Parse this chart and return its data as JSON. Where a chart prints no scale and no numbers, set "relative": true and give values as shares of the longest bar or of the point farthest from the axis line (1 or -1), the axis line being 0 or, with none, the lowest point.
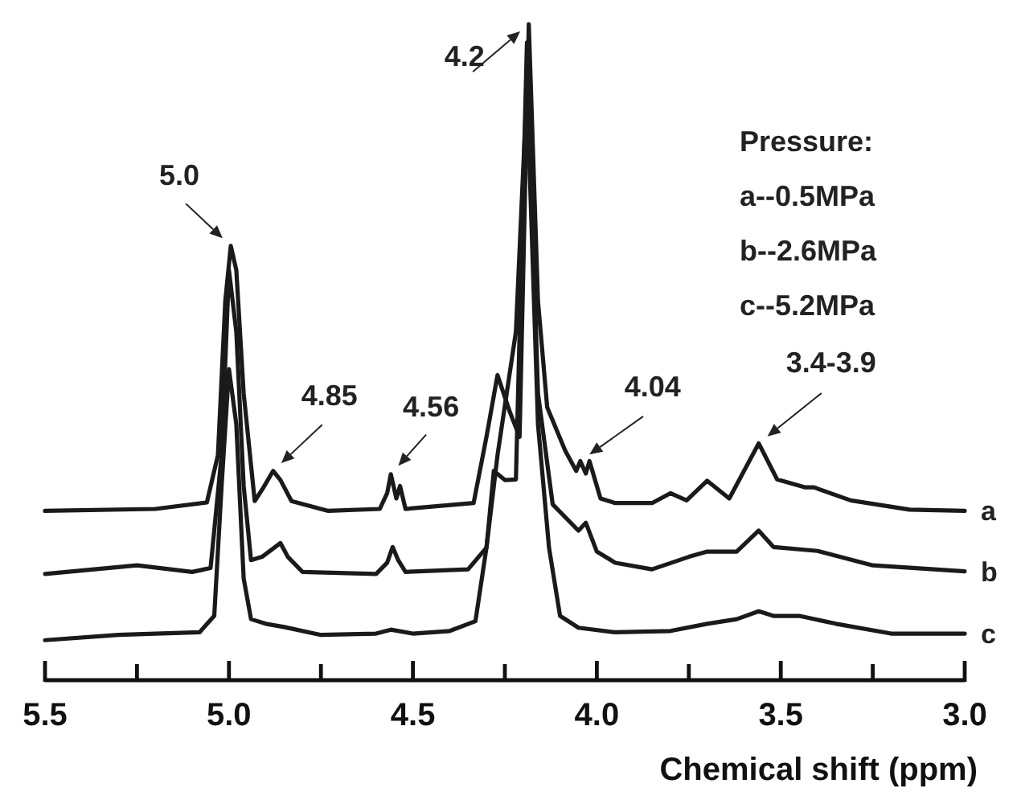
{
  "chart_data": {
    "type": "line",
    "relative": true,
    "xlabel": "Chemical shift (ppm)",
    "xlim": [
      5.5,
      3.0
    ],
    "xticks": [
      5.5,
      {
        "value": 5.25,
        "label": null
      },
      {
        "value": 5.0,
        "label": "5.0"
      },
      {
        "value": 4.75,
        "label": null
      },
      4.5,
      {
        "value": 4.25,
        "label": null
      },
      {
        "value": 4.0,
        "label": "4.0"
      },
      {
        "value": 3.75,
        "label": null
      },
      3.5,
      {
        "value": 3.25,
        "label": null
      },
      {
        "value": 3.0,
        "label": "3.0"
      }
    ],
    "tick_labels": "x",
    "grid": false,
    "legend": false,
    "marker": "none",
    "line_style": "solid",
    "series": [
      {
        "name": "a",
        "color": "#1a1a1a",
        "x": [
          5.5,
          5.2,
          5.06,
          5.03,
          5.01,
          4.995,
          4.98,
          4.96,
          4.93,
          4.906,
          4.88,
          4.86,
          4.83,
          4.73,
          4.59,
          4.57,
          4.56,
          4.545,
          4.535,
          4.52,
          4.335,
          4.3,
          4.27,
          4.236,
          4.21,
          4.185,
          4.16,
          4.135,
          4.086,
          4.056,
          4.045,
          4.03,
          4.02,
          3.99,
          3.95,
          3.85,
          3.8,
          3.756,
          3.7,
          3.64,
          3.56,
          3.51,
          3.435,
          3.41,
          3.31,
          3.15,
          3.0
        ],
        "values": [
          0.258,
          0.261,
          0.271,
          0.343,
          0.578,
          0.662,
          0.625,
          0.437,
          0.273,
          0.294,
          0.319,
          0.305,
          0.273,
          0.258,
          0.261,
          0.285,
          0.314,
          0.277,
          0.296,
          0.261,
          0.27,
          0.371,
          0.465,
          0.408,
          0.371,
          1.0,
          0.578,
          0.416,
          0.35,
          0.319,
          0.334,
          0.315,
          0.334,
          0.277,
          0.27,
          0.27,
          0.285,
          0.274,
          0.304,
          0.277,
          0.361,
          0.306,
          0.294,
          0.294,
          0.274,
          0.26,
          0.258
        ]
      },
      {
        "name": "b",
        "color": "#1a1a1a",
        "x": [
          5.5,
          5.25,
          5.1,
          5.05,
          5.02,
          5.0,
          4.98,
          4.96,
          4.94,
          4.91,
          4.86,
          4.84,
          4.8,
          4.6,
          4.57,
          4.555,
          4.54,
          4.52,
          4.35,
          4.3,
          4.28,
          4.25,
          4.22,
          4.19,
          4.16,
          4.12,
          4.05,
          4.03,
          4.0,
          3.95,
          3.85,
          3.75,
          3.7,
          3.62,
          3.56,
          3.52,
          3.4,
          3.25,
          3.0
        ],
        "values": [
          0.162,
          0.175,
          0.165,
          0.171,
          0.343,
          0.625,
          0.531,
          0.296,
          0.183,
          0.188,
          0.209,
          0.188,
          0.165,
          0.162,
          0.179,
          0.203,
          0.183,
          0.165,
          0.169,
          0.202,
          0.319,
          0.305,
          0.306,
          0.972,
          0.437,
          0.268,
          0.228,
          0.24,
          0.196,
          0.179,
          0.169,
          0.188,
          0.196,
          0.196,
          0.228,
          0.203,
          0.197,
          0.175,
          0.166
        ]
      },
      {
        "name": "c",
        "color": "#1a1a1a",
        "x": [
          5.5,
          5.3,
          5.2,
          5.08,
          5.04,
          5.02,
          5.0,
          4.98,
          4.96,
          4.94,
          4.9,
          4.85,
          4.75,
          4.6,
          4.56,
          4.5,
          4.4,
          4.33,
          4.3,
          4.27,
          4.24,
          4.22,
          4.19,
          4.16,
          4.13,
          4.1,
          4.05,
          3.95,
          3.8,
          3.7,
          3.62,
          3.56,
          3.52,
          3.45,
          3.35,
          3.2,
          3.0
        ],
        "values": [
          0.061,
          0.069,
          0.071,
          0.073,
          0.098,
          0.296,
          0.474,
          0.39,
          0.155,
          0.093,
          0.086,
          0.081,
          0.069,
          0.071,
          0.077,
          0.071,
          0.075,
          0.09,
          0.202,
          0.343,
          0.456,
          0.531,
          0.906,
          0.39,
          0.202,
          0.098,
          0.08,
          0.073,
          0.075,
          0.086,
          0.093,
          0.105,
          0.098,
          0.098,
          0.086,
          0.071,
          0.071
        ]
      }
    ],
    "annotations": [
      {
        "text": "5.0",
        "x": 4.995,
        "y": 0.662
      },
      {
        "text": "4.2",
        "x": 4.185,
        "y": 1.0
      },
      {
        "text": "4.85",
        "x": 4.88,
        "y": 0.319
      },
      {
        "text": "4.56",
        "x": 4.56,
        "y": 0.314
      },
      {
        "text": "4.04",
        "x": 4.045,
        "y": 0.334
      },
      {
        "text": "3.4-3.9",
        "x": 3.56,
        "y": 0.361
      },
      "Pressure:",
      "a--0.5MPa",
      "b--2.6MPa",
      "c--5.2MPa"
    ]
  }
}
